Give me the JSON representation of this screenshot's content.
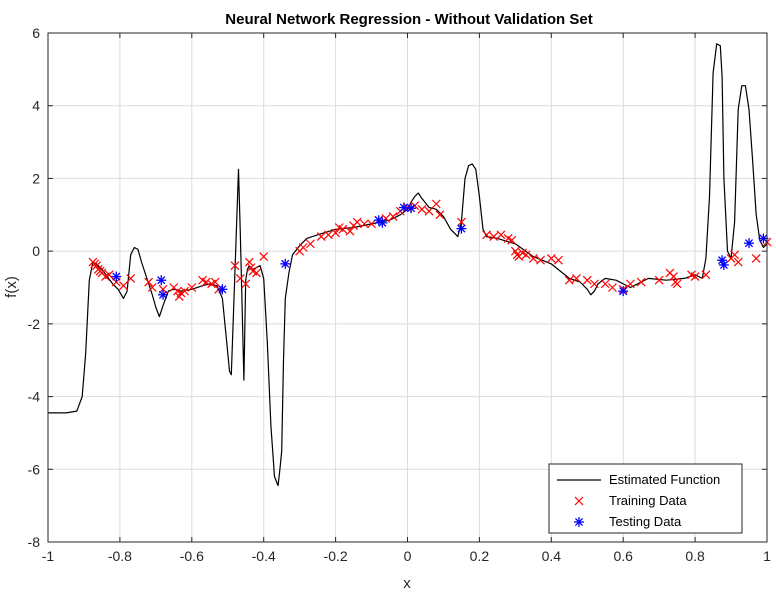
{
  "chart_data": {
    "type": "line",
    "title": "Neural Network Regression - Without Validation Set",
    "xlabel": "x",
    "ylabel": "f(x)",
    "xlim": [
      -1,
      1
    ],
    "ylim": [
      -8,
      6
    ],
    "xticks": [
      -1,
      -0.8,
      -0.6,
      -0.4,
      -0.2,
      0,
      0.2,
      0.4,
      0.6,
      0.8,
      1
    ],
    "xtick_labels": [
      "-1",
      "-0.8",
      "-0.6",
      "-0.4",
      "-0.2",
      "0",
      "0.2",
      "0.4",
      "0.6",
      "0.8",
      "1"
    ],
    "yticks": [
      -8,
      -6,
      -4,
      -2,
      0,
      2,
      4,
      6
    ],
    "ytick_labels": [
      "-8",
      "-6",
      "-4",
      "-2",
      "0",
      "2",
      "4",
      "6"
    ],
    "grid": true,
    "legend_position": "bottom-right",
    "series": [
      {
        "name": "Estimated Function",
        "kind": "line",
        "color": "#000000",
        "x": [
          -1,
          -0.95,
          -0.92,
          -0.905,
          -0.895,
          -0.885,
          -0.875,
          -0.865,
          -0.85,
          -0.835,
          -0.82,
          -0.805,
          -0.79,
          -0.78,
          -0.77,
          -0.76,
          -0.75,
          -0.74,
          -0.73,
          -0.72,
          -0.71,
          -0.7,
          -0.69,
          -0.68,
          -0.665,
          -0.65,
          -0.63,
          -0.6,
          -0.57,
          -0.55,
          -0.53,
          -0.515,
          -0.505,
          -0.495,
          -0.49,
          -0.48,
          -0.47,
          -0.465,
          -0.46,
          -0.455,
          -0.45,
          -0.445,
          -0.44,
          -0.43,
          -0.42,
          -0.41,
          -0.4,
          -0.39,
          -0.38,
          -0.37,
          -0.36,
          -0.355,
          -0.35,
          -0.345,
          -0.34,
          -0.33,
          -0.32,
          -0.3,
          -0.28,
          -0.25,
          -0.2,
          -0.15,
          -0.1,
          -0.05,
          -0.02,
          0,
          0.01,
          0.02,
          0.03,
          0.04,
          0.06,
          0.08,
          0.1,
          0.12,
          0.14,
          0.15,
          0.16,
          0.17,
          0.18,
          0.19,
          0.2,
          0.21,
          0.22,
          0.25,
          0.3,
          0.35,
          0.4,
          0.45,
          0.48,
          0.5,
          0.51,
          0.52,
          0.53,
          0.55,
          0.58,
          0.62,
          0.67,
          0.72,
          0.77,
          0.8,
          0.82,
          0.83,
          0.84,
          0.85,
          0.86,
          0.87,
          0.875,
          0.88,
          0.89,
          0.9,
          0.91,
          0.92,
          0.93,
          0.94,
          0.95,
          0.96,
          0.97,
          0.98,
          0.99,
          1
        ],
        "y": [
          -4.45,
          -4.45,
          -4.4,
          -4.0,
          -2.8,
          -0.8,
          -0.3,
          -0.35,
          -0.5,
          -0.7,
          -0.9,
          -1.05,
          -1.3,
          -1.1,
          -0.1,
          0.1,
          0.05,
          -0.3,
          -0.6,
          -0.9,
          -1.2,
          -1.55,
          -1.8,
          -1.5,
          -1.1,
          -1.05,
          -1.1,
          -1.05,
          -0.95,
          -0.9,
          -0.95,
          -1.3,
          -2.3,
          -3.3,
          -3.4,
          -0.6,
          2.25,
          0.5,
          -1.5,
          -3.55,
          -0.8,
          -0.5,
          -0.4,
          -0.5,
          -0.45,
          -0.4,
          -0.75,
          -2.5,
          -4.8,
          -6.2,
          -6.45,
          -6.0,
          -5.5,
          -3.0,
          -1.3,
          -0.6,
          -0.1,
          0.15,
          0.35,
          0.45,
          0.6,
          0.65,
          0.75,
          0.85,
          1.0,
          1.15,
          1.35,
          1.5,
          1.6,
          1.45,
          1.2,
          1.15,
          0.95,
          0.6,
          0.4,
          0.8,
          2.0,
          2.35,
          2.4,
          2.25,
          1.5,
          0.6,
          0.4,
          0.35,
          0.2,
          -0.15,
          -0.35,
          -0.75,
          -0.85,
          -1.05,
          -1.2,
          -1.1,
          -0.9,
          -0.75,
          -0.8,
          -1.0,
          -0.75,
          -0.8,
          -0.75,
          -0.65,
          -0.75,
          -0.2,
          1.5,
          4.9,
          5.7,
          5.65,
          4.8,
          2.0,
          0.0,
          -0.2,
          0.8,
          3.9,
          4.55,
          4.55,
          3.9,
          2.5,
          1.0,
          0.3,
          0.1,
          0.2
        ]
      },
      {
        "name": "Training Data",
        "kind": "scatter",
        "marker": "x",
        "color": "#ff0000",
        "x": [
          -0.875,
          -0.87,
          -0.865,
          -0.86,
          -0.855,
          -0.85,
          -0.84,
          -0.83,
          -0.81,
          -0.79,
          -0.77,
          -0.72,
          -0.71,
          -0.68,
          -0.65,
          -0.64,
          -0.635,
          -0.63,
          -0.62,
          -0.6,
          -0.57,
          -0.56,
          -0.545,
          -0.535,
          -0.525,
          -0.48,
          -0.465,
          -0.45,
          -0.44,
          -0.435,
          -0.43,
          -0.42,
          -0.4,
          -0.3,
          -0.29,
          -0.27,
          -0.24,
          -0.22,
          -0.2,
          -0.19,
          -0.18,
          -0.16,
          -0.15,
          -0.14,
          -0.12,
          -0.1,
          -0.08,
          -0.06,
          -0.04,
          -0.02,
          0.0,
          0.02,
          0.04,
          0.06,
          0.08,
          0.09,
          0.15,
          0.22,
          0.24,
          0.26,
          0.28,
          0.29,
          0.3,
          0.305,
          0.31,
          0.32,
          0.33,
          0.35,
          0.37,
          0.4,
          0.42,
          0.45,
          0.47,
          0.5,
          0.52,
          0.55,
          0.57,
          0.6,
          0.62,
          0.65,
          0.7,
          0.73,
          0.74,
          0.745,
          0.75,
          0.79,
          0.8,
          0.83,
          0.9,
          0.91,
          0.92,
          0.97,
          1.0
        ],
        "y": [
          -0.3,
          -0.35,
          -0.4,
          -0.5,
          -0.55,
          -0.6,
          -0.7,
          -0.65,
          -0.85,
          -0.95,
          -0.75,
          -0.85,
          -1.0,
          -1.05,
          -1.0,
          -1.1,
          -1.25,
          -1.15,
          -1.1,
          -1.0,
          -0.8,
          -0.85,
          -0.9,
          -0.85,
          -1.05,
          -0.4,
          -0.75,
          -0.9,
          -0.3,
          -0.45,
          -0.55,
          -0.6,
          -0.15,
          0.0,
          0.1,
          0.2,
          0.4,
          0.45,
          0.5,
          0.65,
          0.6,
          0.55,
          0.7,
          0.8,
          0.75,
          0.75,
          0.85,
          0.9,
          0.95,
          1.1,
          1.2,
          1.25,
          1.15,
          1.1,
          1.3,
          1.0,
          0.8,
          0.45,
          0.4,
          0.45,
          0.35,
          0.3,
          0.0,
          -0.1,
          -0.15,
          -0.05,
          -0.1,
          -0.2,
          -0.25,
          -0.2,
          -0.25,
          -0.8,
          -0.75,
          -0.8,
          -0.9,
          -0.9,
          -1.0,
          -1.05,
          -0.9,
          -0.85,
          -0.8,
          -0.6,
          -0.7,
          -0.85,
          -0.9,
          -0.65,
          -0.7,
          -0.65,
          -0.2,
          -0.1,
          -0.3,
          -0.2,
          0.25
        ]
      },
      {
        "name": "Testing Data",
        "kind": "scatter",
        "marker": "asterisk",
        "color": "#0000ff",
        "x": [
          -0.81,
          -0.685,
          -0.68,
          -0.515,
          -0.34,
          -0.08,
          -0.07,
          -0.01,
          0.01,
          0.15,
          0.6,
          0.875,
          0.88,
          0.95,
          0.99
        ],
        "y": [
          -0.7,
          -0.8,
          -1.2,
          -1.05,
          -0.35,
          0.85,
          0.78,
          1.2,
          1.18,
          0.62,
          -1.1,
          -0.25,
          -0.38,
          0.22,
          0.35
        ]
      }
    ]
  }
}
